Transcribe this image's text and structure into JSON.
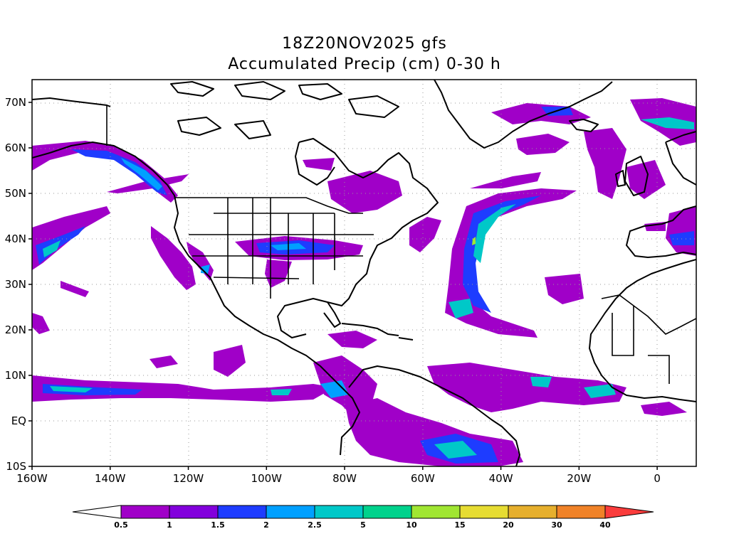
{
  "title": {
    "line1": "18Z20NOV2025 gfs",
    "line2": "Accumulated Precip (cm) 0-30 h"
  },
  "map": {
    "lon_range": [
      -160,
      10
    ],
    "lat_range": [
      -10,
      75
    ],
    "lat_ticks": [
      {
        "value": 70,
        "label": "70N"
      },
      {
        "value": 60,
        "label": "60N"
      },
      {
        "value": 50,
        "label": "50N"
      },
      {
        "value": 40,
        "label": "40N"
      },
      {
        "value": 30,
        "label": "30N"
      },
      {
        "value": 20,
        "label": "20N"
      },
      {
        "value": 10,
        "label": "10N"
      },
      {
        "value": 0,
        "label": "EQ"
      },
      {
        "value": -10,
        "label": "10S"
      }
    ],
    "lon_ticks": [
      {
        "value": -160,
        "label": "160W"
      },
      {
        "value": -140,
        "label": "140W"
      },
      {
        "value": -120,
        "label": "120W"
      },
      {
        "value": -100,
        "label": "100W"
      },
      {
        "value": -80,
        "label": "80W"
      },
      {
        "value": -60,
        "label": "60W"
      },
      {
        "value": -40,
        "label": "40W"
      },
      {
        "value": -20,
        "label": "20W"
      },
      {
        "value": 0,
        "label": "0"
      }
    ],
    "gridlines": "dotted"
  },
  "colorbar": {
    "levels": [
      "0.5",
      "1",
      "1.5",
      "2",
      "2.5",
      "5",
      "10",
      "15",
      "20",
      "30",
      "40"
    ],
    "colors": [
      "#ffffff",
      "#a000c8",
      "#8200dc",
      "#1e3cff",
      "#00a0ff",
      "#00c8c8",
      "#00d28c",
      "#a0e632",
      "#e6dc32",
      "#e6af2d",
      "#f08228",
      "#fa3c3c"
    ]
  }
}
